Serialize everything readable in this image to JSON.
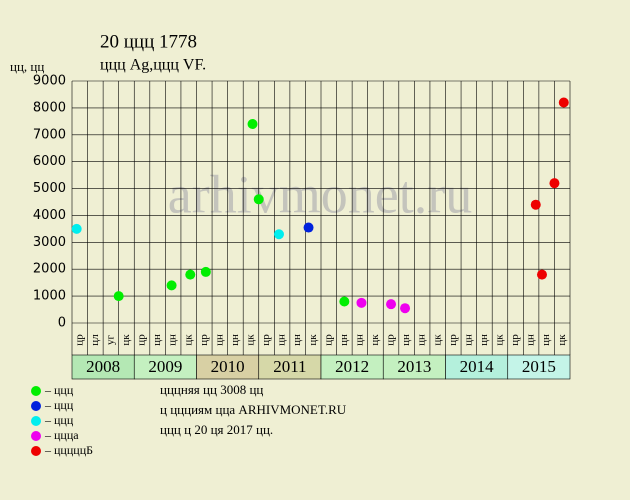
{
  "chart_data": {
    "type": "scatter",
    "title": "20 ццц 1778",
    "subtitle": "ццц Ag,ццц VF.",
    "y_label": "цц, цц",
    "watermark": "arhivmonet.ru",
    "xlim": [
      0,
      32
    ],
    "ylim": [
      0,
      9000
    ],
    "yticks": [
      0,
      1000,
      2000,
      3000,
      4000,
      5000,
      6000,
      7000,
      8000,
      9000
    ],
    "grid": true,
    "columns": [
      "цр",
      "цл",
      "уг",
      "цк",
      "цр",
      "цн",
      "цн",
      "цк",
      "цр",
      "цн",
      "цн",
      "цк",
      "цр",
      "цн",
      "цн",
      "цк",
      "цр",
      "цн",
      "цн",
      "цк",
      "цр",
      "цн",
      "цн",
      "цк",
      "цр",
      "цн",
      "цн",
      "цк",
      "цр",
      "цн",
      "цн",
      "цк"
    ],
    "years": [
      {
        "label": "2008",
        "color": "#b4e8b4"
      },
      {
        "label": "2009",
        "color": "#c4f0c0"
      },
      {
        "label": "2010",
        "color": "#d8d0a4"
      },
      {
        "label": "2011",
        "color": "#d6d8a8"
      },
      {
        "label": "2012",
        "color": "#c4f0c0"
      },
      {
        "label": "2013",
        "color": "#c4f0c0"
      },
      {
        "label": "2014",
        "color": "#b4f0dc"
      },
      {
        "label": "2015",
        "color": "#c4f4e8"
      }
    ],
    "series": [
      {
        "name": "– ццц",
        "color": "#00ee00",
        "x": [
          3.0,
          6.4,
          7.6,
          8.6,
          11.6,
          12.0,
          17.5
        ],
        "values": [
          1000,
          1400,
          1800,
          1900,
          7400,
          4600,
          800
        ]
      },
      {
        "name": "– ццц",
        "color": "#0022dd",
        "x": [
          15.2
        ],
        "values": [
          3550
        ]
      },
      {
        "name": "– ццц",
        "color": "#00eeee",
        "x": [
          0.3,
          13.3
        ],
        "values": [
          3500,
          3300
        ]
      },
      {
        "name": "– ццца",
        "color": "#ee00ee",
        "x": [
          18.6,
          20.5,
          21.4
        ],
        "values": [
          750,
          700,
          550
        ]
      },
      {
        "name": "– цццццБ",
        "color": "#ee0000",
        "x": [
          29.8,
          30.2,
          31.0,
          31.6
        ],
        "values": [
          4400,
          1800,
          5200,
          8200
        ]
      }
    ],
    "notes": [
      "цццняя цц 3008 цц",
      "ц ццциям цца ARHIVMONET.RU",
      "ццц ц 20 ця 2017 цц."
    ]
  }
}
